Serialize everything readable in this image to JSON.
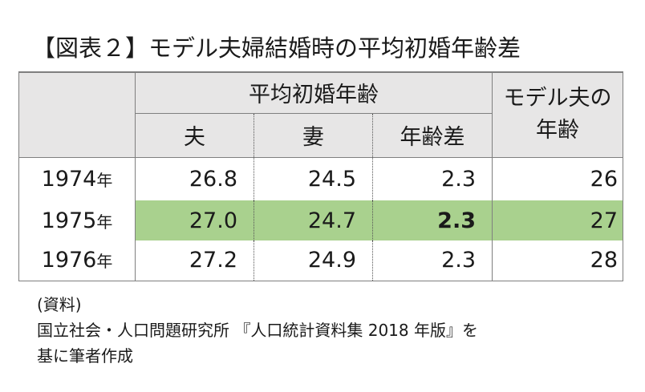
{
  "title": "【図表２】モデル夫婦結婚時の平均初婚年齢差",
  "header": {
    "group_label": "平均初婚年齢",
    "col_husband": "夫",
    "col_wife": "妻",
    "col_diff": "年齢差",
    "col_model_line1": "モデル夫の",
    "col_model_line2": "年齢"
  },
  "year_suffix": "年",
  "rows": [
    {
      "year": "1974",
      "husband": "26.8",
      "wife": "24.5",
      "diff": "2.3",
      "model": "26",
      "highlight": false
    },
    {
      "year": "1975",
      "husband": "27.0",
      "wife": "24.7",
      "diff": "2.3",
      "model": "27",
      "highlight": true
    },
    {
      "year": "1976",
      "husband": "27.2",
      "wife": "24.9",
      "diff": "2.3",
      "model": "28",
      "highlight": false
    }
  ],
  "colors": {
    "header_bg": "#e7e6e6",
    "highlight_bg": "#a9d18e",
    "border": "#7f7f7f"
  },
  "note": {
    "line1": "(資料)",
    "line2": "国立社会・人口問題研究所 『人口統計資料集 2018 年版』を",
    "line3": "基に筆者作成"
  }
}
